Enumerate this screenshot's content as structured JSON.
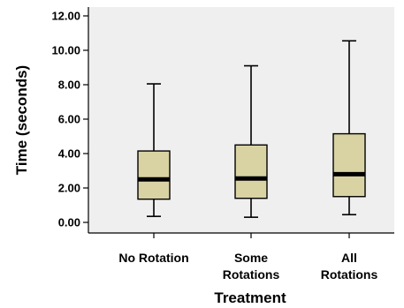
{
  "chart_data": {
    "type": "boxplot",
    "title": "",
    "xlabel": "Treatment",
    "ylabel": "Time (seconds)",
    "ylim": [
      0,
      12
    ],
    "yticks": [
      "0.00",
      "2.00",
      "4.00",
      "6.00",
      "8.00",
      "10.00",
      "12.00"
    ],
    "grid": false,
    "categories": [
      [
        "No Rotation"
      ],
      [
        "Some",
        "Rotations"
      ],
      [
        "All",
        "Rotations"
      ]
    ],
    "boxes": [
      {
        "min": 0.35,
        "q1": 1.35,
        "median": 2.5,
        "q3": 4.15,
        "max": 8.05
      },
      {
        "min": 0.3,
        "q1": 1.4,
        "median": 2.55,
        "q3": 4.5,
        "max": 9.1
      },
      {
        "min": 0.45,
        "q1": 1.5,
        "median": 2.8,
        "q3": 5.15,
        "max": 10.55
      }
    ],
    "colors": {
      "plot_bg": "#efefef",
      "box_fill": "#d9d3a4",
      "line": "#000000"
    }
  }
}
